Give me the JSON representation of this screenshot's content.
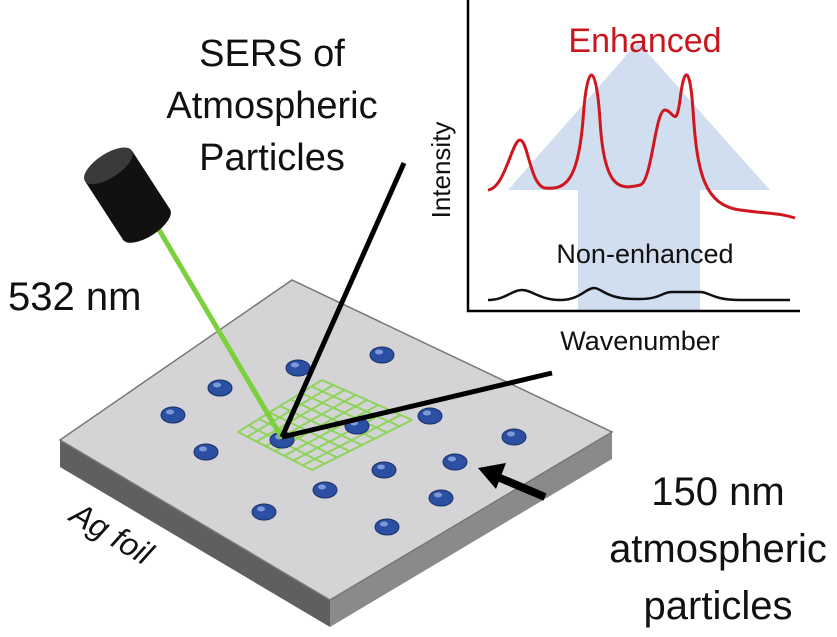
{
  "title": {
    "lines": [
      "SERS of",
      "Atmospheric",
      "Particles"
    ]
  },
  "laser": {
    "label": "532 nm"
  },
  "inset": {
    "enhanced_label": "Enhanced",
    "y_label": "Intensity",
    "non_enhanced_label": "Non-enhanced",
    "x_label": "Wavenumber"
  },
  "particles": {
    "lines": [
      "150 nm",
      "atmospheric",
      "particles"
    ]
  },
  "substrate": {
    "label": "Ag foil"
  }
}
